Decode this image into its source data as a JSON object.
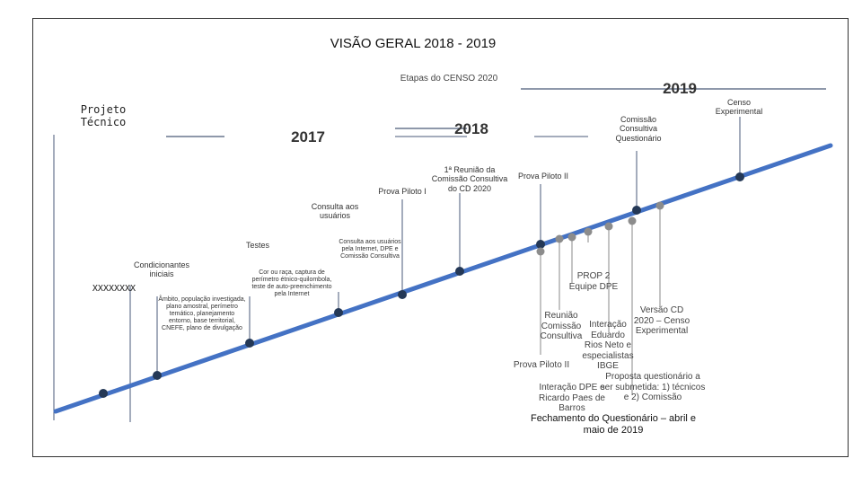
{
  "title": "VISÃO GERAL   2018 - 2019",
  "subtitle": "Etapas do CENSO 2020",
  "years": {
    "y2017": "2017",
    "y2018": "2018",
    "y2019": "2019"
  },
  "colors": {
    "timeline": "#4472C4",
    "node_dark": "#243856",
    "node_gray": "#8c8c8c",
    "leader": "#4a5a78",
    "frame": "#333333"
  },
  "labels": {
    "projeto_tecnico": "Projeto Técnico",
    "xxx": "XXXXXXXX",
    "condicionantes": "Condicionantes iniciais",
    "ambito": "Âmbito, população investigada, plano amostral, perímetro temático, planejamento entorno, base territorial, CNEFE, plano de divulgação",
    "testes": "Testes",
    "cor_raca": "Cor ou raça, captura de perímetro étnico-quilombola, teste de auto-preenchimento pela Internet",
    "consulta_usuarios": "Consulta aos usuários",
    "consulta_internet": "Consulta aos usuários pela Internet, DPE e Comissão Consultiva",
    "prova_piloto_1": "Prova Piloto I",
    "reuniao_1": "1ª Reunião da Comissão Consultiva do CD 2020",
    "prova_piloto_2_top": "Prova Piloto II",
    "comissao_questionario": "Comissão Consultiva Questionário",
    "censo_experimental": "Censo Experimental",
    "prop2": "PROP 2 Equipe DPE",
    "versao_cd": "Versão CD 2020 – Censo Experimental",
    "reuniao_comissao": "Reunião Comissão Consultiva",
    "interacao_eduardo": "Interação Eduardo Rios Neto e especialistas IBGE",
    "prova_piloto_2_low": "Prova Piloto II",
    "proposta": "Proposta questionário a ser submetida: 1) técnicos e 2) Comissão",
    "interacao_ricardo": "Interação DPE e Ricardo Paes de Barros",
    "fechamento": "Fechamento do Questionário – abril e maio de 2019"
  }
}
